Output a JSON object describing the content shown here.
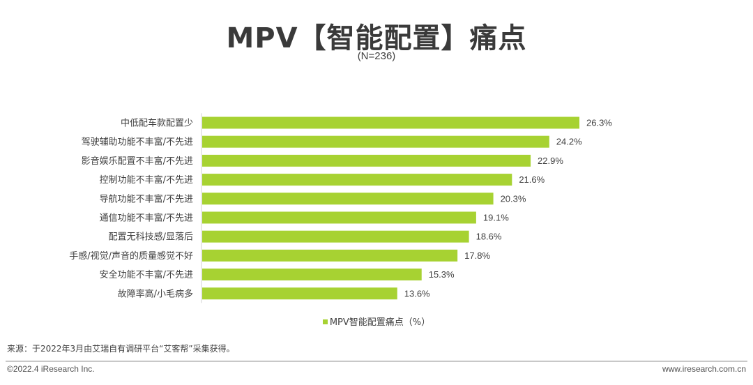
{
  "header": {
    "title": "MPV【智能配置】痛点",
    "subtitle": "(N=236)"
  },
  "legend": {
    "label": "MPV智能配置痛点（%）"
  },
  "footer": {
    "source": "来源：于2022年3月由艾瑞自有调研平台“艾客帮”采集获得。",
    "copyright": "©2022.4 iResearch Inc.",
    "website": "www.iresearch.com.cn"
  },
  "colors": {
    "bar": "#a7d232",
    "axis": "#d0d0d0"
  },
  "chart_data": {
    "type": "bar",
    "orientation": "horizontal",
    "title": "MPV【智能配置】痛点",
    "subtitle": "(N=236)",
    "categories": [
      "中低配车款配置少",
      "驾驶辅助功能不丰富/不先进",
      "影音娱乐配置不丰富/不先进",
      "控制功能不丰富/不先进",
      "导航功能不丰富/不先进",
      "通信功能不丰富/不先进",
      "配置无科技感/显落后",
      "手感/视觉/声音的质量感觉不好",
      "安全功能不丰富/不先进",
      "故障率高/小毛病多"
    ],
    "series": [
      {
        "name": "MPV智能配置痛点（%）",
        "values": [
          26.3,
          24.2,
          22.9,
          21.6,
          20.3,
          19.1,
          18.6,
          17.8,
          15.3,
          13.6
        ],
        "labels": [
          "26.3%",
          "24.2%",
          "22.9%",
          "21.6%",
          "20.3%",
          "19.1%",
          "18.6%",
          "17.8%",
          "15.3%",
          "13.6%"
        ]
      }
    ],
    "legend_position": "bottom",
    "grid": false
  }
}
